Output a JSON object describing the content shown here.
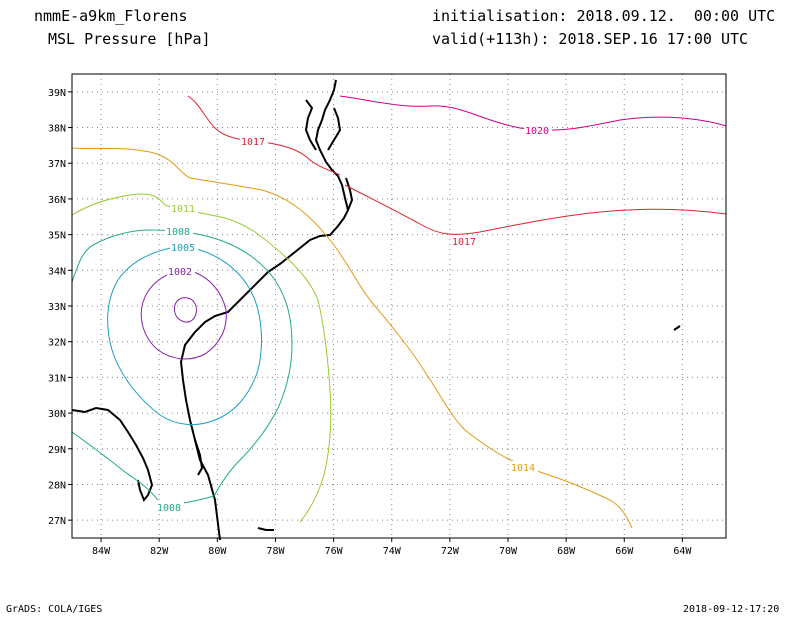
{
  "header": {
    "model_title": "nmmE-a9km_Florens",
    "field_title": "MSL Pressure [hPa]",
    "init_text": "initialisation: 2018.09.12.  00:00 UTC",
    "valid_text": "valid(+113h): 2018.SEP.16 17:00 UTC"
  },
  "footer": {
    "credit": "GrADS: COLA/IGES",
    "timestamp": "2018-09-12-17:20"
  },
  "axes": {
    "lon_labels": [
      "84W",
      "82W",
      "80W",
      "78W",
      "76W",
      "74W",
      "72W",
      "70W",
      "68W",
      "66W",
      "64W"
    ],
    "lat_labels": [
      "39N",
      "38N",
      "37N",
      "36N",
      "35N",
      "34N",
      "33N",
      "32N",
      "31N",
      "30N",
      "29N",
      "28N",
      "27N"
    ]
  },
  "chart_data": {
    "type": "contour-map",
    "field": "MSL Pressure [hPa]",
    "lon_range": [
      -85,
      -62.5
    ],
    "lat_range": [
      26.5,
      39.5
    ],
    "grid": true,
    "contour_labels": [
      {
        "value": "1020",
        "color": "#cc0088"
      },
      {
        "value": "1017",
        "color": "#dd2233"
      },
      {
        "value": "1017",
        "color": "#dd2233"
      },
      {
        "value": "1014",
        "color": "#e09a10"
      },
      {
        "value": "1011",
        "color": "#99cc33"
      },
      {
        "value": "1008",
        "color": "#22aa88"
      },
      {
        "value": "1008",
        "color": "#22aa88"
      },
      {
        "value": "1005",
        "color": "#1aa0c0"
      },
      {
        "value": "1002",
        "color": "#8822aa"
      }
    ]
  }
}
